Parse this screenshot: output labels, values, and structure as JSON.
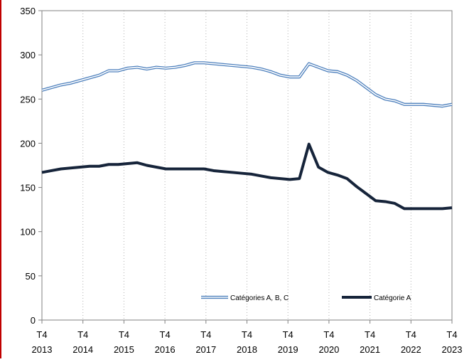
{
  "colors": {
    "accent_rule": "#c00000",
    "series_abc": "#4f81bd",
    "series_a": "#16243a",
    "grid": "#b0b0b0",
    "axis": "#808080"
  },
  "chart_data": {
    "type": "line",
    "title": "",
    "xlabel": "",
    "ylabel": "",
    "ylim": [
      0,
      350
    ],
    "y_ticks": [
      0,
      50,
      100,
      150,
      200,
      250,
      300,
      350
    ],
    "x_tick_labels": [
      {
        "q": "T4",
        "year": "2013"
      },
      {
        "q": "T4",
        "year": "2014"
      },
      {
        "q": "T4",
        "year": "2015"
      },
      {
        "q": "T4",
        "year": "2016"
      },
      {
        "q": "T4",
        "year": "2017"
      },
      {
        "q": "T4",
        "year": "2018"
      },
      {
        "q": "T4",
        "year": "2019"
      },
      {
        "q": "T4",
        "year": "2020"
      },
      {
        "q": "T4",
        "year": "2021"
      },
      {
        "q": "T4",
        "year": "2022"
      },
      {
        "q": "T4",
        "year": "2023"
      }
    ],
    "grid": "vertical dotted",
    "legend_position": "bottom",
    "series": [
      {
        "name": "Catégories A, B, C",
        "style": "double-line",
        "color": "#4f81bd",
        "values": [
          260,
          263,
          266,
          268,
          271,
          274,
          277,
          282,
          282,
          285,
          286,
          284,
          286,
          285,
          286,
          288,
          291,
          291,
          290,
          289,
          288,
          287,
          286,
          284,
          281,
          277,
          275,
          275,
          290,
          286,
          282,
          281,
          277,
          271,
          263,
          255,
          250,
          248,
          244,
          244,
          244,
          243,
          242,
          244
        ]
      },
      {
        "name": "Catégorie A",
        "style": "thick",
        "color": "#16243a",
        "values": [
          167,
          169,
          171,
          172,
          173,
          174,
          174,
          176,
          176,
          177,
          178,
          175,
          173,
          171,
          171,
          171,
          171,
          171,
          169,
          168,
          167,
          166,
          165,
          163,
          161,
          160,
          159,
          160,
          199,
          173,
          167,
          164,
          160,
          151,
          143,
          135,
          134,
          132,
          126,
          126,
          126,
          126,
          126,
          127
        ]
      }
    ]
  }
}
